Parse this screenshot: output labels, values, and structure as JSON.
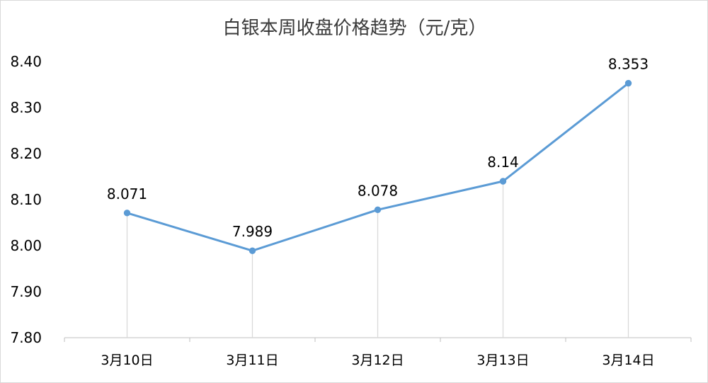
{
  "chart_data": {
    "type": "line",
    "title": "白银本周收盘价格趋势（元/克）",
    "xlabel": "",
    "ylabel": "",
    "categories": [
      "3月10日",
      "3月11日",
      "3月12日",
      "3月13日",
      "3月14日"
    ],
    "series": [
      {
        "values": [
          8.071,
          7.989,
          8.078,
          8.14,
          8.353
        ]
      }
    ],
    "data_labels": [
      "8.071",
      "7.989",
      "8.078",
      "8.14",
      "8.353"
    ],
    "ylim": [
      7.8,
      8.4
    ],
    "yticks": [
      "7.80",
      "7.90",
      "8.00",
      "8.10",
      "8.20",
      "8.30",
      "8.40"
    ],
    "grid": false,
    "drop_lines": true,
    "legend": "none",
    "colors": {
      "line": "#5b9bd5",
      "drop_line": "#d9d9d9",
      "axis": "#bfbfbf"
    }
  }
}
